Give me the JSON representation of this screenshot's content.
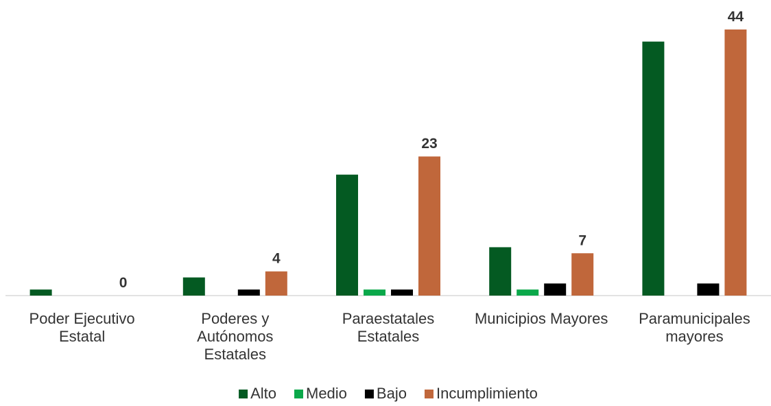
{
  "chart_data": {
    "type": "bar",
    "categories": [
      "Poder Ejecutivo Estatal",
      "Poderes y Autónomos Estatales",
      "Paraestatales Estatales",
      "Municipios Mayores",
      "Paramunicipales mayores"
    ],
    "series": [
      {
        "name": "Alto",
        "color": "#045a22",
        "values": [
          1,
          3,
          20,
          8,
          42
        ]
      },
      {
        "name": "Medio",
        "color": "#0aa84a",
        "values": [
          0,
          0,
          1,
          1,
          0
        ]
      },
      {
        "name": "Bajo",
        "color": "#000000",
        "values": [
          0,
          1,
          1,
          2,
          2
        ]
      },
      {
        "name": "Incumplimiento",
        "color": "#c0673b",
        "values": [
          0,
          4,
          23,
          7,
          44
        ],
        "labels": true
      }
    ],
    "ylim": [
      0,
      44
    ]
  }
}
